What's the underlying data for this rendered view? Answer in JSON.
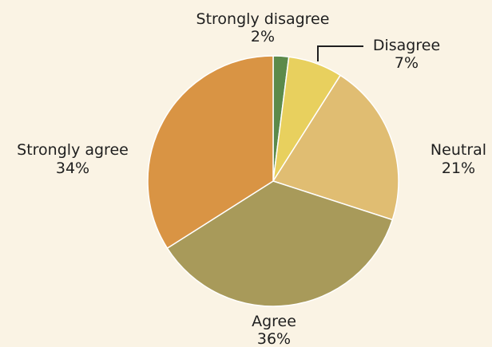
{
  "chart_data": {
    "type": "pie",
    "title": "",
    "start_angle_deg": 0,
    "direction": "clockwise",
    "slices": [
      {
        "label": "Strongly disagree",
        "value": 2,
        "display": "2%",
        "color": "#5C8A4A"
      },
      {
        "label": "Disagree",
        "value": 7,
        "display": "7%",
        "color": "#E8D05E"
      },
      {
        "label": "Neutral",
        "value": 21,
        "display": "21%",
        "color": "#E0BD72"
      },
      {
        "label": "Agree",
        "value": 36,
        "display": "36%",
        "color": "#A89A5A"
      },
      {
        "label": "Strongly agree",
        "value": 34,
        "display": "34%",
        "color": "#D99444"
      }
    ]
  }
}
